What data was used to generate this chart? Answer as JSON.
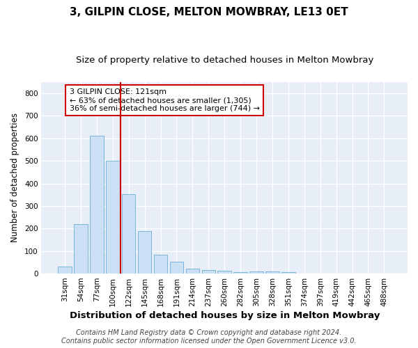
{
  "title": "3, GILPIN CLOSE, MELTON MOWBRAY, LE13 0ET",
  "subtitle": "Size of property relative to detached houses in Melton Mowbray",
  "xlabel": "Distribution of detached houses by size in Melton Mowbray",
  "ylabel": "Number of detached properties",
  "bar_labels": [
    "31sqm",
    "54sqm",
    "77sqm",
    "100sqm",
    "122sqm",
    "145sqm",
    "168sqm",
    "191sqm",
    "214sqm",
    "237sqm",
    "260sqm",
    "282sqm",
    "305sqm",
    "328sqm",
    "351sqm",
    "374sqm",
    "397sqm",
    "419sqm",
    "442sqm",
    "465sqm",
    "488sqm"
  ],
  "bar_values": [
    30,
    218,
    612,
    500,
    353,
    188,
    83,
    52,
    22,
    16,
    14,
    7,
    10,
    9,
    7,
    0,
    0,
    0,
    0,
    0,
    0
  ],
  "bar_color": "#cce0f5",
  "bar_edgecolor": "#6aaed6",
  "vline_x": 3.5,
  "vline_color": "#cc0000",
  "annotation_text": "3 GILPIN CLOSE: 121sqm\n← 63% of detached houses are smaller (1,305)\n36% of semi-detached houses are larger (744) →",
  "annotation_box_color": "#ffffff",
  "annotation_box_edgecolor": "#cc0000",
  "ylim": [
    0,
    850
  ],
  "yticks": [
    0,
    100,
    200,
    300,
    400,
    500,
    600,
    700,
    800
  ],
  "plot_bg_color": "#e8eef8",
  "figure_bg_color": "#ffffff",
  "grid_color": "#ffffff",
  "footer": "Contains HM Land Registry data © Crown copyright and database right 2024.\nContains public sector information licensed under the Open Government Licence v3.0.",
  "title_fontsize": 11,
  "subtitle_fontsize": 9.5,
  "xlabel_fontsize": 9.5,
  "ylabel_fontsize": 8.5,
  "tick_fontsize": 7.5,
  "annot_fontsize": 8,
  "footer_fontsize": 7
}
